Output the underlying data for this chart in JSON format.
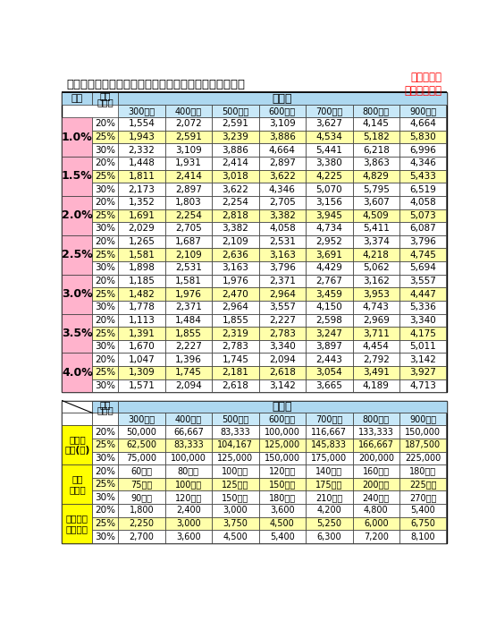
{
  "title": "金利別、年収負担率別　住宅ローン借入可能額（万円）",
  "subtitle": "３０年返済\n元利金等払い",
  "income_cols": [
    "300万円",
    "400万円",
    "500万円",
    "600万円",
    "700万円",
    "800万円",
    "900万円"
  ],
  "interest_rates": [
    "1.0%",
    "1.5%",
    "2.0%",
    "2.5%",
    "3.0%",
    "3.5%",
    "4.0%"
  ],
  "burden_rates": [
    "20%",
    "25%",
    "30%"
  ],
  "loan_data": [
    [
      [
        1554,
        2072,
        2591,
        3109,
        3627,
        4145,
        4664
      ],
      [
        1943,
        2591,
        3239,
        3886,
        4534,
        5182,
        5830
      ],
      [
        2332,
        3109,
        3886,
        4664,
        5441,
        6218,
        6996
      ]
    ],
    [
      [
        1448,
        1931,
        2414,
        2897,
        3380,
        3863,
        4346
      ],
      [
        1811,
        2414,
        3018,
        3622,
        4225,
        4829,
        5433
      ],
      [
        2173,
        2897,
        3622,
        4346,
        5070,
        5795,
        6519
      ]
    ],
    [
      [
        1352,
        1803,
        2254,
        2705,
        3156,
        3607,
        4058
      ],
      [
        1691,
        2254,
        2818,
        3382,
        3945,
        4509,
        5073
      ],
      [
        2029,
        2705,
        3382,
        4058,
        4734,
        5411,
        6087
      ]
    ],
    [
      [
        1265,
        1687,
        2109,
        2531,
        2952,
        3374,
        3796
      ],
      [
        1581,
        2109,
        2636,
        3163,
        3691,
        4218,
        4745
      ],
      [
        1898,
        2531,
        3163,
        3796,
        4429,
        5062,
        5694
      ]
    ],
    [
      [
        1185,
        1581,
        1976,
        2371,
        2767,
        3162,
        3557
      ],
      [
        1482,
        1976,
        2470,
        2964,
        3459,
        3953,
        4447
      ],
      [
        1778,
        2371,
        2964,
        3557,
        4150,
        4743,
        5336
      ]
    ],
    [
      [
        1113,
        1484,
        1855,
        2227,
        2598,
        2969,
        3340
      ],
      [
        1391,
        1855,
        2319,
        2783,
        3247,
        3711,
        4175
      ],
      [
        1670,
        2227,
        2783,
        3340,
        3897,
        4454,
        5011
      ]
    ],
    [
      [
        1047,
        1396,
        1745,
        2094,
        2443,
        2792,
        3142
      ],
      [
        1309,
        1745,
        2181,
        2618,
        3054,
        3491,
        3927
      ],
      [
        1571,
        2094,
        2618,
        3142,
        3665,
        4189,
        4713
      ]
    ]
  ],
  "second_table_row_labels": [
    "毎月返\n済額(円)",
    "年間\n返済額",
    "総返済額\n（万円）"
  ],
  "monthly_payment": [
    [
      "50,000",
      "66,667",
      "83,333",
      "100,000",
      "116,667",
      "133,333",
      "150,000"
    ],
    [
      "62,500",
      "83,333",
      "104,167",
      "125,000",
      "145,833",
      "166,667",
      "187,500"
    ],
    [
      "75,000",
      "100,000",
      "125,000",
      "150,000",
      "175,000",
      "200,000",
      "225,000"
    ]
  ],
  "annual_payment": [
    [
      "60万円",
      "80万円",
      "100万円",
      "120万円",
      "140万円",
      "160万円",
      "180万円"
    ],
    [
      "75万円",
      "100万円",
      "125万円",
      "150万円",
      "175万円",
      "200万円",
      "225万円"
    ],
    [
      "90万円",
      "120万円",
      "150万円",
      "180万円",
      "210万円",
      "240万円",
      "270万円"
    ]
  ],
  "total_payment": [
    [
      "1,800",
      "2,400",
      "3,000",
      "3,600",
      "4,200",
      "4,800",
      "5,400"
    ],
    [
      "2,250",
      "3,000",
      "3,750",
      "4,500",
      "5,250",
      "6,000",
      "6,750"
    ],
    [
      "2,700",
      "3,600",
      "4,500",
      "5,400",
      "6,300",
      "7,200",
      "8,100"
    ]
  ],
  "color_pink": "#FFB3CC",
  "color_yellow_light": "#FFFFAA",
  "color_blue_header": "#ADD8F0",
  "color_blue_subheader": "#C8E8F8",
  "color_yellow_bright": "#FFFF00",
  "color_white": "#FFFFFF",
  "color_red": "#FF0000",
  "color_black": "#000000",
  "color_light_gray": "#F0F0F0"
}
